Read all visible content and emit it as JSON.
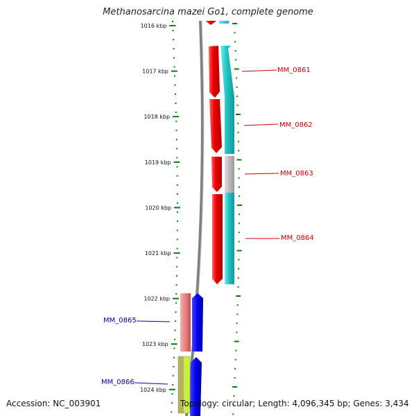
{
  "title": "Methanosarcina mazei Go1, complete genome",
  "footer": {
    "accession": "Accession: NC_003901",
    "info": "Topology: circular; Length: 4,096,345 bp; Genes: 3,434"
  },
  "ruler": {
    "ticks": [
      "1016 kbp",
      "1017 kbp",
      "1018 kbp",
      "1019 kbp",
      "1020 kbp",
      "1021 kbp",
      "1022 kbp",
      "1023 kbp",
      "1024 kbp"
    ]
  },
  "genes": [
    {
      "label": "MM_0861",
      "color": "#cc0000"
    },
    {
      "label": "MM_0862",
      "color": "#cc0000"
    },
    {
      "label": "MM_0863",
      "color": "#cc0000"
    },
    {
      "label": "MM_0864",
      "color": "#cc0000"
    },
    {
      "label": "MM_0865",
      "color": "#0000aa"
    },
    {
      "label": "MM_0866",
      "color": "#0000aa"
    }
  ],
  "colors": {
    "red_feature": "#ee0000",
    "cyan_feature": "#22c8c8",
    "gray_feature": "#b4b4b4",
    "pink_feature": "#e88080",
    "blue_feature": "#0000ee",
    "olive_feature": "#b8b060",
    "lime_feature": "#c8ee40",
    "backbone": "#808080",
    "tick": "#008000"
  }
}
